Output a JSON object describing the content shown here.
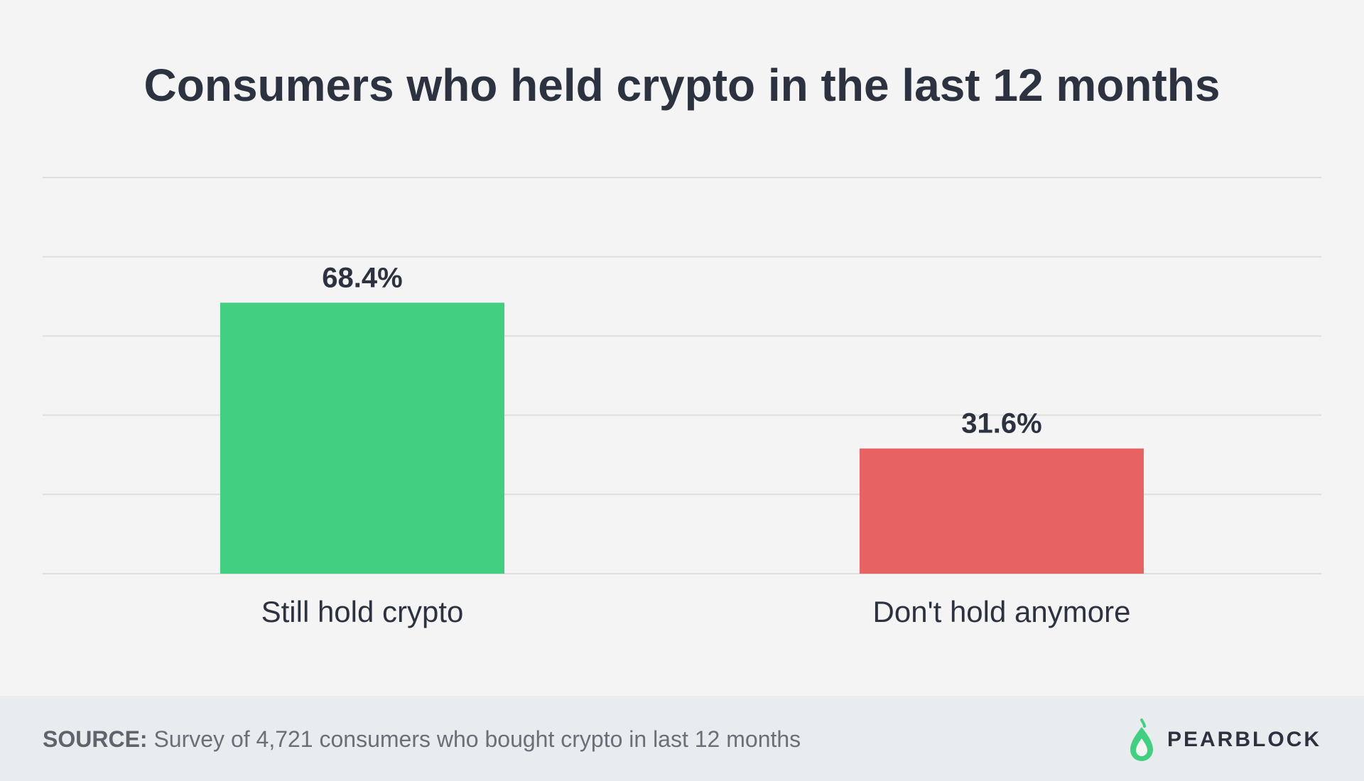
{
  "chart_data": {
    "type": "bar",
    "title": "Consumers who held crypto in the last 12 months",
    "categories": [
      "Still hold crypto",
      "Don't hold anymore"
    ],
    "values": [
      68.4,
      31.6
    ],
    "value_labels": [
      "68.4%",
      "31.6%"
    ],
    "colors": [
      "#42cf82",
      "#e76363"
    ],
    "xlabel": "",
    "ylabel": "",
    "ylim": [
      0,
      100
    ],
    "grid": true
  },
  "footer": {
    "source_label": "SOURCE:",
    "source_text": "Survey of 4,721 consumers who bought crypto in last 12 months",
    "brand": "PEARBLOCK",
    "brand_color": "#42cf82"
  }
}
